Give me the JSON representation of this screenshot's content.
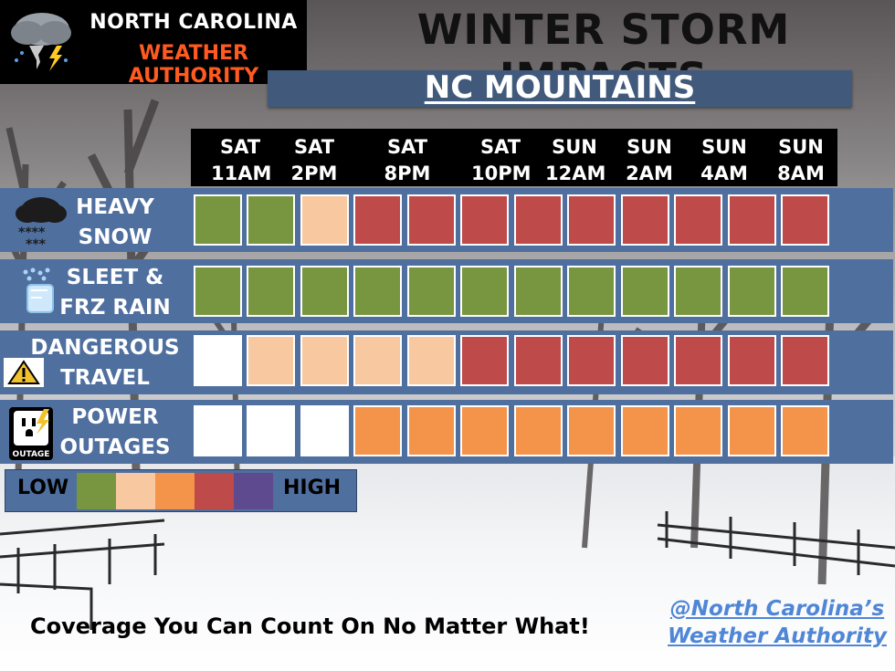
{
  "brand": {
    "line1": "NORTH CAROLINA",
    "line2": "WEATHER AUTHORITY",
    "icon": "storm-cloud-tornado-lightning-icon"
  },
  "title": "WINTER STORM IMPACTS",
  "subtitle": "NC MOUNTAINS",
  "times": [
    {
      "day": "SAT",
      "time": "11AM"
    },
    {
      "day": "SAT",
      "time": "2PM"
    },
    {
      "day": "SAT",
      "time": "8PM"
    },
    {
      "day": "SAT",
      "time": "10PM"
    },
    {
      "day": "SUN",
      "time": "12AM"
    },
    {
      "day": "SUN",
      "time": "2AM"
    },
    {
      "day": "SUN",
      "time": "4AM"
    },
    {
      "day": "SUN",
      "time": "8AM"
    }
  ],
  "rows": [
    {
      "line1": "HEAVY",
      "line2": "SNOW",
      "icon": "heavy-snow-icon",
      "levels": [
        1,
        1,
        2,
        4,
        4,
        4,
        4,
        4,
        4,
        4,
        4,
        4
      ]
    },
    {
      "line1": "SLEET &",
      "line2": "FRZ RAIN",
      "icon": "sleet-ice-icon",
      "levels": [
        1,
        1,
        1,
        1,
        1,
        1,
        1,
        1,
        1,
        1,
        1,
        1
      ]
    },
    {
      "line1": "DANGEROUS",
      "line2": "TRAVEL",
      "icon": "warning-icon",
      "levels": [
        0,
        2,
        2,
        2,
        2,
        4,
        4,
        4,
        4,
        4,
        4,
        4
      ]
    },
    {
      "line1": "POWER",
      "line2": "OUTAGES",
      "icon": "power-outage-icon",
      "icon_text": "OUTAGE",
      "levels": [
        0,
        0,
        0,
        3,
        3,
        3,
        3,
        3,
        3,
        3,
        3,
        3
      ]
    }
  ],
  "level_colors": [
    "#ffffff",
    "#77963f",
    "#f8c8a0",
    "#f4934a",
    "#be4a4a",
    "#5e4a8e"
  ],
  "legend": {
    "low": "LOW",
    "high": "HIGH"
  },
  "footer": {
    "tagline": "Coverage You Can Count On No Matter What!",
    "handle_line1": "@North Carolina’s",
    "handle_line2": "Weather Authority"
  }
}
